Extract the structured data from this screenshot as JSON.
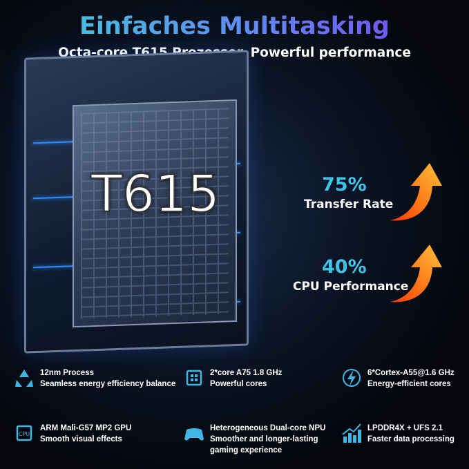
{
  "header": {
    "title": "Einfaches Multitasking",
    "subtitle": "Octa-core T615 Prozessor, Powerful performance"
  },
  "chip": {
    "label": "T615"
  },
  "stats": [
    {
      "value": "75%",
      "label": "Transfer Rate",
      "icon": "orange-up-arrow-icon"
    },
    {
      "value": "40%",
      "label": "CPU Performance",
      "icon": "orange-up-arrow-icon"
    }
  ],
  "features": [
    {
      "icon": "recycle-icon",
      "line1": "12nm Process",
      "line2": "Seamless energy efficiency balance"
    },
    {
      "icon": "processor-icon",
      "line1": "2*core A75 1.8 GHz",
      "line2": "Powerful cores"
    },
    {
      "icon": "lightning-icon",
      "line1": "6*Cortex-A55@1.6 GHz",
      "line2": "Energy-efficient cores"
    },
    {
      "icon": "cpu-icon",
      "line1": "ARM Mali-G57 MP2 GPU",
      "line2": "Smooth visual effects"
    },
    {
      "icon": "gamepad-icon",
      "line1": "Heterogeneous Dual-core NPU",
      "line2": "Smoother and longer-lasting",
      "line3": "gaming experience"
    },
    {
      "icon": "growth-chart-icon",
      "line1": "LPDDR4X + UFS 2.1",
      "line2": "Faster data processing"
    }
  ],
  "colors": {
    "accent": "#3fc3e6",
    "arrow": "#ff7a1a",
    "title_start": "#3fd2d6",
    "title_end": "#7a3cf0"
  }
}
